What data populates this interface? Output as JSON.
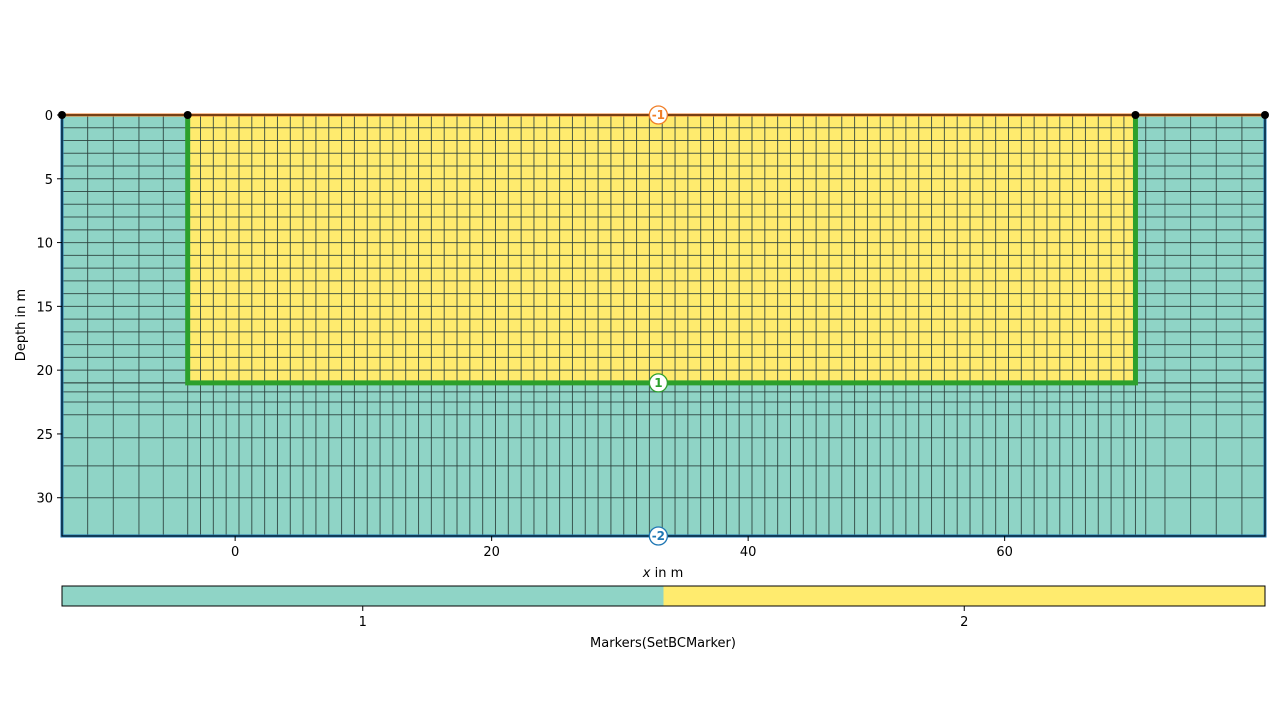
{
  "chart_data": {
    "type": "mesh",
    "xlabel_prefix": "x",
    "xlabel_suffix": " in m",
    "ylabel": "Depth in m",
    "xlim": [
      -13.5,
      80.3
    ],
    "ylim": [
      33,
      0
    ],
    "x_ticks": [
      "0",
      "20",
      "40",
      "60"
    ],
    "y_ticks": [
      "0",
      "5",
      "10",
      "15",
      "20",
      "25",
      "30"
    ],
    "regions": [
      {
        "marker": 1,
        "color": "#8fd4c6",
        "x_range": [
          -13.5,
          80.3
        ],
        "depth_range": [
          0,
          33
        ]
      },
      {
        "marker": 2,
        "color": "#ffeb6e",
        "x_range": [
          -3.7,
          70.2
        ],
        "depth_range": [
          0,
          21
        ]
      }
    ],
    "boundaries": [
      {
        "marker": "-1",
        "color": "#f07f28",
        "location": "top surface",
        "label_position": [
          33,
          0
        ]
      },
      {
        "marker": "1",
        "color": "#2ca02c",
        "location": "inner region boundary",
        "label_position": [
          33,
          21
        ]
      },
      {
        "marker": "-2",
        "color": "#1f77b4",
        "location": "outer boundary",
        "label_position": [
          33,
          33
        ]
      }
    ],
    "mesh": {
      "inner_dx": 1.0,
      "outer_x_positions": [
        -13.5,
        -11.5,
        -9.5,
        -7.5,
        -5.6,
        71.0,
        72.5,
        74.5,
        76.5,
        78.5,
        80.3
      ],
      "inner_dy": 1.0,
      "outer_depths": [
        21,
        21.7,
        22.5,
        23.5,
        25.3,
        27.5,
        30,
        33
      ]
    },
    "nodes": [
      [
        -13.5,
        0
      ],
      [
        -3.7,
        0
      ],
      [
        70.2,
        0
      ],
      [
        80.3,
        0
      ]
    ],
    "colorbar": {
      "label": "Markers(SetBCMarker)",
      "tick_labels": [
        "1",
        "2"
      ],
      "colors": [
        "#8fd4c6",
        "#ffeb6e"
      ]
    }
  }
}
